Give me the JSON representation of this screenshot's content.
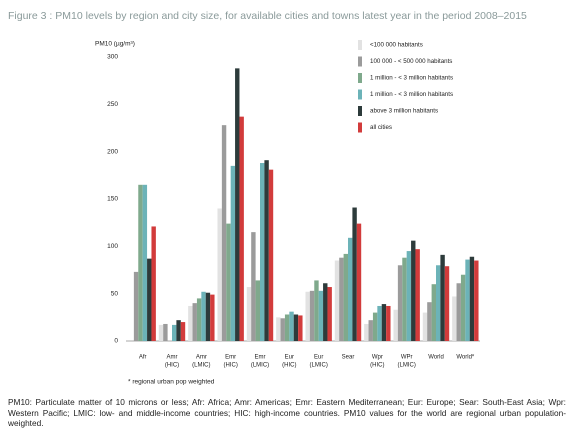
{
  "chart_data": {
    "type": "bar",
    "title": "Figure 3 : PM10 levels by region and city size, for available cities and towns latest year in the period 2008–2015",
    "y_label": "PM10 (µg/m³)",
    "footnote": "* regional urban pop weighted",
    "categories": [
      [
        "Afr"
      ],
      [
        "Amr",
        "(HIC)"
      ],
      [
        "Amr",
        "(LMIC)"
      ],
      [
        "Emr",
        "(HIC)"
      ],
      [
        "Emr",
        "(LMIC)"
      ],
      [
        "Eur",
        "(HIC)"
      ],
      [
        "Eur",
        "(LMIC)"
      ],
      [
        "Sear"
      ],
      [
        "Wpr",
        "(HIC)"
      ],
      [
        "WPr",
        "(LMIC)"
      ],
      [
        "World"
      ],
      [
        "World*"
      ]
    ],
    "series": [
      {
        "name": "<100 000 habitants",
        "color": "#e2e2e2",
        "values": [
          null,
          17,
          37,
          140,
          57,
          25,
          52,
          85,
          18,
          33,
          30,
          47
        ]
      },
      {
        "name": "100 000 - < 500 000 habitants",
        "color": "#9b9b9b",
        "values": [
          73,
          18,
          40,
          228,
          115,
          24,
          53,
          88,
          22,
          80,
          41,
          61
        ]
      },
      {
        "name": "1 million - < 3 million habitants",
        "color": "#7fa98c",
        "values": [
          165,
          null,
          45,
          124,
          64,
          28,
          64,
          92,
          30,
          88,
          60,
          70
        ]
      },
      {
        "name": "1 million - < 3 million habitants",
        "color": "#6cb3b8",
        "values": [
          165,
          17,
          52,
          185,
          188,
          31,
          53,
          109,
          37,
          95,
          80,
          86
        ]
      },
      {
        "name": "above 3 million habitants",
        "color": "#2d3b3b",
        "values": [
          87,
          22,
          51,
          288,
          191,
          28,
          61,
          141,
          39,
          106,
          91,
          89
        ]
      },
      {
        "name": "all cities",
        "color": "#d23b3b",
        "values": [
          121,
          20,
          49,
          237,
          181,
          27,
          57,
          124,
          37,
          97,
          79,
          85
        ]
      }
    ],
    "ylim": [
      0,
      300
    ],
    "yticks": [
      0,
      50,
      100,
      150,
      200,
      250,
      300
    ],
    "note": "PM10: Particulate matter of 10 microns or less; Afr: Africa; Amr: Americas; Emr: Eastern Mediterranean; Eur: Europe; Sear: South-East Asia; Wpr: Western Pacific; LMIC: low- and middle-income countries; HIC: high-income countries. PM10 values for the world are regional urban population-weighted."
  }
}
